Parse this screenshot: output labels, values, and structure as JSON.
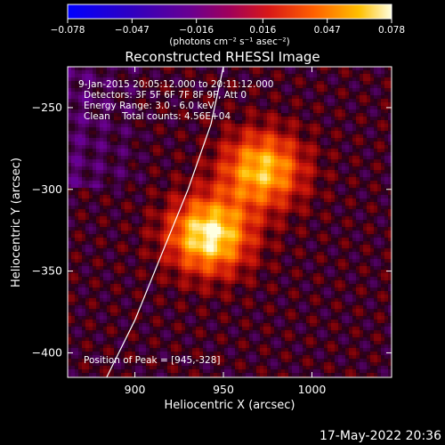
{
  "chart_data": {
    "type": "heatmap",
    "title": "Reconstructed RHESSI Image",
    "xlabel": "Heliocentric X (arcsec)",
    "ylabel": "Heliocentric Y (arcsec)",
    "xlim": [
      862,
      1045
    ],
    "ylim": [
      -415,
      -225
    ],
    "x_ticks": [
      900,
      950,
      1000
    ],
    "x_tick_labels": [
      "900",
      "950",
      "1000"
    ],
    "y_ticks": [
      -250,
      -300,
      -350,
      -400
    ],
    "y_tick_labels": [
      "−250",
      "−300",
      "−350",
      "−400"
    ],
    "colorbar": {
      "range": [
        -0.078,
        0.078
      ],
      "ticks": [
        -0.078,
        -0.047,
        -0.016,
        0.016,
        0.047,
        0.078
      ],
      "tick_labels": [
        "−0.078",
        "−0.047",
        "−0.016",
        "0.016",
        "0.047",
        "0.078"
      ],
      "units": "(photons cm⁻² s⁻¹ asec⁻²)"
    },
    "annotations": [
      "9-Jan-2015 20:05:12.000 to 20:11:12.000",
      "Detectors: 3F 5F 6F 7F 8F 9F, Att 0",
      "Energy Range: 3.0 - 6.0 keV",
      "Clean    Total counts: 4.56E+04"
    ],
    "peak_label": "Position of Peak = [945,-328]",
    "peak": [
      945,
      -328
    ],
    "sources": [
      {
        "x": 942,
        "y": -328,
        "peak": 0.078
      },
      {
        "x": 972,
        "y": -288,
        "peak": 0.064
      }
    ],
    "limb_curve": [
      [
        884,
        -415
      ],
      [
        900,
        -380
      ],
      [
        915,
        -340
      ],
      [
        930,
        -300
      ],
      [
        943,
        -260
      ],
      [
        950,
        -225
      ]
    ]
  },
  "footer": {
    "timestamp": "17-May-2022 20:36"
  }
}
